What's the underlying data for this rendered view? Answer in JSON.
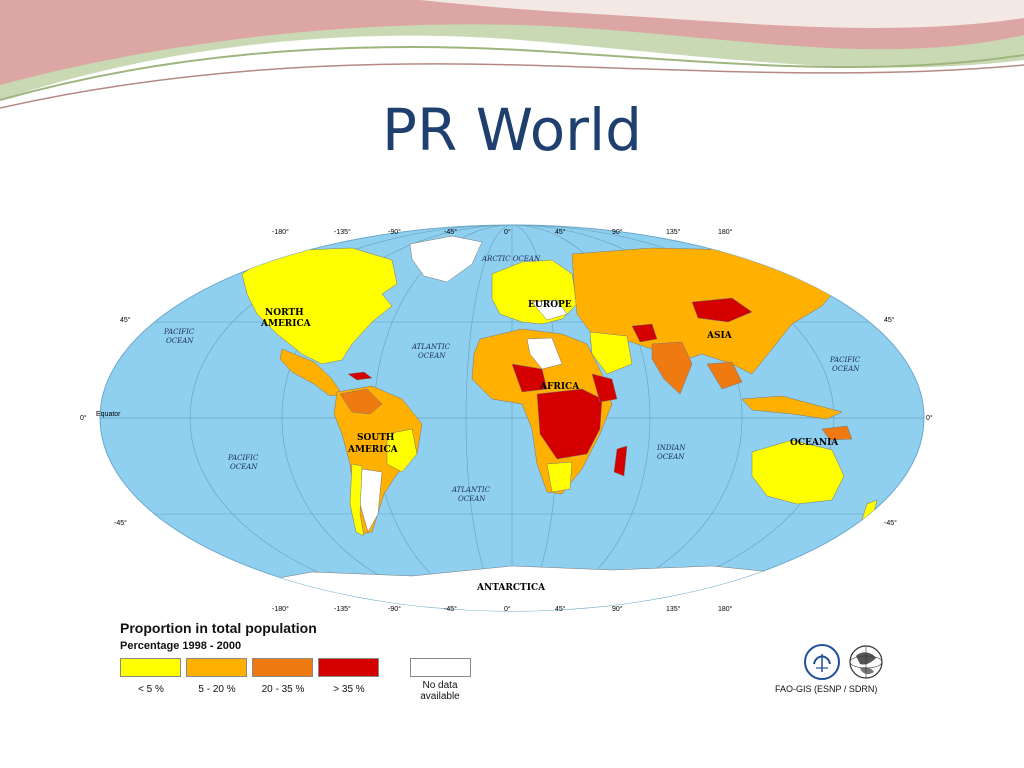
{
  "slide": {
    "title": "PR World"
  },
  "map": {
    "continent_labels": [
      "NORTH",
      "AMERICA",
      "SOUTH",
      "AMERICA",
      "EUROPE",
      "AFRICA",
      "ASIA",
      "OCEANIA",
      "ANTARCTICA"
    ],
    "ocean_labels": {
      "arctic": "ARCTIC OCEAN",
      "pacific_nw_1": "PACIFIC",
      "pacific_nw_2": "OCEAN",
      "pacific_sw_1": "PACIFIC",
      "pacific_sw_2": "OCEAN",
      "pacific_e_1": "PACIFIC",
      "pacific_e_2": "OCEAN",
      "atlantic_n_1": "ATLANTIC",
      "atlantic_n_2": "OCEAN",
      "atlantic_s_1": "ATLANTIC",
      "atlantic_s_2": "OCEAN",
      "indian_1": "INDIAN",
      "indian_2": "OCEAN"
    },
    "equator_label": "Equator",
    "longitude_ticks": [
      "-180°",
      "-135°",
      "-90°",
      "-45°",
      "0°",
      "45°",
      "90°",
      "135°",
      "180°"
    ],
    "latitude_ticks_left": [
      "45°",
      "0°",
      "-45°"
    ],
    "latitude_ticks_right": [
      "45°",
      "0°",
      "-45°"
    ],
    "colors": {
      "ocean": "#8fcff0",
      "lt5": "#ffff00",
      "5to20": "#ffb000",
      "20to35": "#f07a12",
      "gt35": "#d40000",
      "nodata": "#ffffff"
    }
  },
  "legend": {
    "title": "Proportion in total population",
    "subtitle": "Percentage 1998 - 2000",
    "items": [
      {
        "label": "< 5 %",
        "color": "#ffff00"
      },
      {
        "label": "5 - 20 %",
        "color": "#ffb000"
      },
      {
        "label": "20 - 35 %",
        "color": "#f07a12"
      },
      {
        "label": "> 35 %",
        "color": "#d40000"
      }
    ],
    "nodata_line1": "No data",
    "nodata_line2": "available",
    "nodata_color": "#ffffff"
  },
  "credit": "FAO-GIS (ESNP / SDRN)"
}
